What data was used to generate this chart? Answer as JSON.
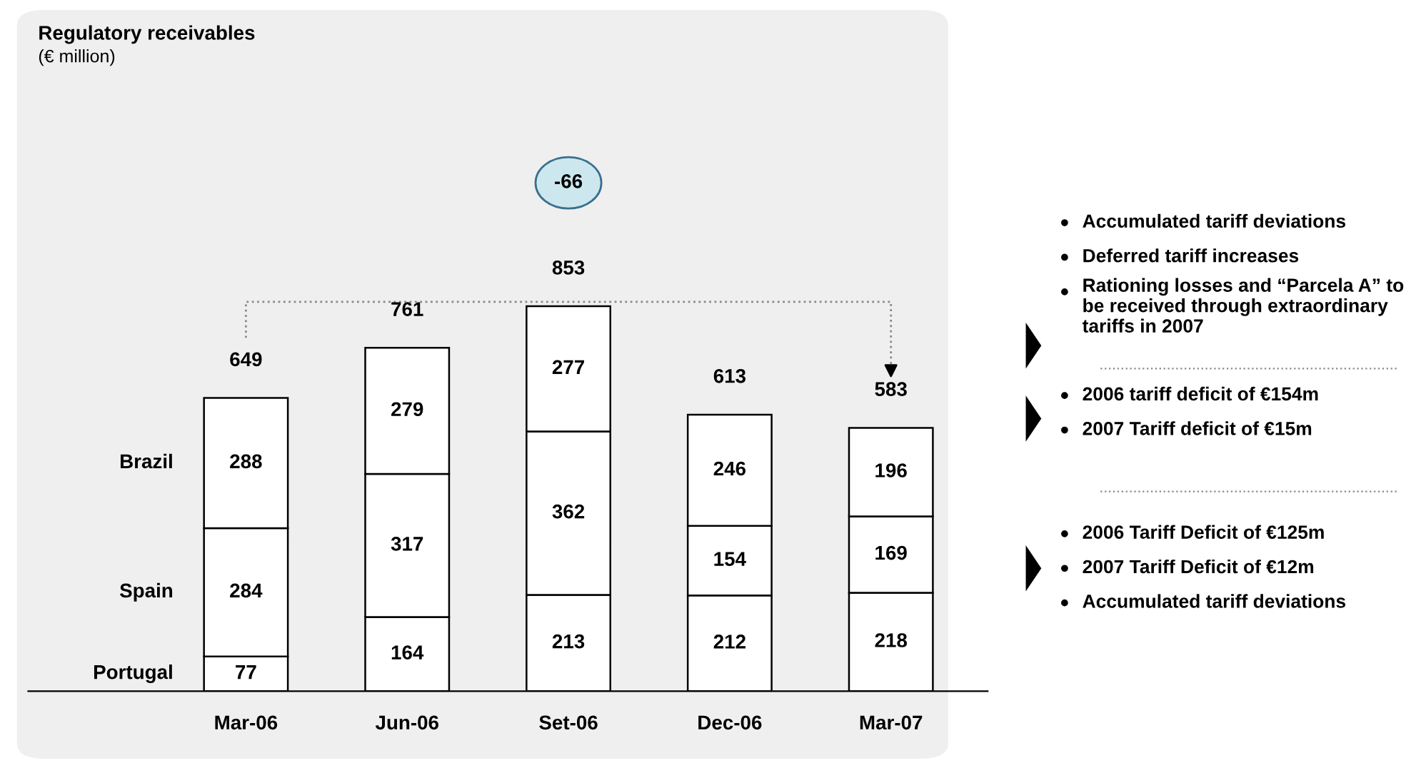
{
  "chart_data": {
    "type": "bar",
    "stacked": true,
    "title": "Regulatory receivables",
    "subtitle": "(€ million)",
    "categories": [
      "Mar-06",
      "Jun-06",
      "Set-06",
      "Dec-06",
      "Mar-07"
    ],
    "series": [
      {
        "name": "Portugal",
        "color": "#ffffff",
        "values": [
          77,
          164,
          213,
          212,
          218
        ]
      },
      {
        "name": "Spain",
        "color": "#ffffff",
        "values": [
          284,
          317,
          362,
          154,
          169
        ]
      },
      {
        "name": "Brazil",
        "color": "#ffffff",
        "values": [
          288,
          279,
          277,
          246,
          196
        ]
      }
    ],
    "data_labels": true,
    "totals": [
      "649",
      "761",
      "853",
      "613",
      "583"
    ],
    "legend": false,
    "grid": false,
    "annotations": [
      "-66",
      "Accumulated tariff deviations",
      "Deferred tariff increases",
      "Rationing losses and “Parcela A” to be received through extraordinary tariffs in 2007",
      "2006 tariff deficit of €154m",
      "2007 Tariff deficit of €15m",
      "2006 Tariff Deficit of €125m",
      "2007 Tariff Deficit of €12m",
      "Accumulated tariff deviations"
    ]
  }
}
